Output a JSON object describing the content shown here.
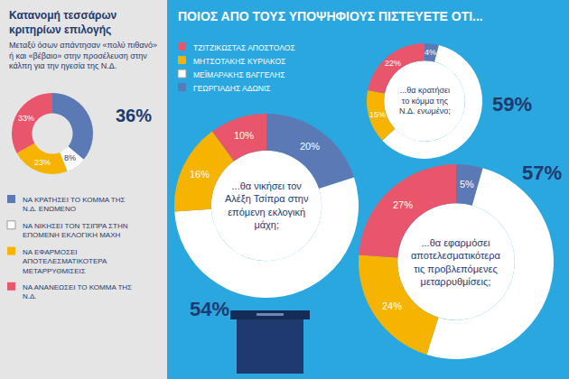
{
  "chart_data": [
    {
      "type": "pie",
      "title": "Κατανομή τεσσάρων κριτηρίων επιλογής",
      "subtitle": "Μεταξύ όσων απάντησαν «πολύ πιθανό» ή και «βέβαιο» στην προσέλευση στην κάλπη για την ηγεσία της Ν.Δ.",
      "categories": [
        "ΝΑ ΚΡΑΤΗΣΕΙ ΤΟ ΚΟΜΜΑ ΤΗΣ Ν.Δ. ΕΝΩΜΕΝΟ",
        "ΝΑ ΝΙΚΗΣΕΙ ΤΟΝ ΤΣΙΠΡΑ ΣΤΗΝ ΕΠΟΜΕΝΗ ΕΚΛΟΓΙΚΗ ΜΑΧΗ",
        "ΝΑ ΕΦΑΡΜΟΣΕΙ ΑΠΟΤΕΛΕΣΜΑΤΙΚΟΤΕΡΑ ΜΕΤΑΡΡΥΘΜΙΣΕΙΣ",
        "ΝΑ ΑΝΑΝΕΩΣΕΙ ΤΟ ΚΟΜΜΑ ΤΗΣ Ν.Δ."
      ],
      "values": [
        36,
        8,
        23,
        33
      ],
      "value_labels": [
        "36%",
        "8%",
        "23%",
        "33%"
      ],
      "colors": [
        "#5a79b5",
        "#ffffff",
        "#f6b400",
        "#e9556b"
      ],
      "data_labels": true,
      "legend": "bottom"
    },
    {
      "type": "pie",
      "title": "ΠΟΙΟΣ ΑΠΟ ΤΟΥΣ ΥΠΟΨΗΦΙΟΥΣ ΠΙΣΤΕΥΕΤΕ ΟΤΙ...",
      "categories": [
        "ΓΕΩΡΓΙΑΔΗΣ ΑΔΩΝΙΣ",
        "ΜΕΪΜΑΡΑΚΗΣ ΒΑΓΓΕΛΗΣ",
        "ΜΗΤΣΟΤΑΚΗΣ ΚΥΡΙΑΚΟΣ",
        "ΤΖΙΤΖΙΚΩΣΤΑΣ ΑΠΟΣΤΟΛΟΣ"
      ],
      "colors": [
        "#5a79b5",
        "#ffffff",
        "#f6b400",
        "#e9556b"
      ],
      "series": [
        {
          "name": "...θα κρατήσει το κόμμα της Ν.Δ. ενωμένο;",
          "values": [
            4,
            59,
            15,
            22
          ],
          "value_labels": [
            "4%",
            "59%",
            "15%",
            "22%"
          ]
        },
        {
          "name": "...θα νικήσει τον Αλέξη Τσίπρα στην επόμενη εκλογική μάχη;",
          "values": [
            20,
            54,
            16,
            10
          ],
          "value_labels": [
            "20%",
            "54%",
            "16%",
            "10%"
          ]
        },
        {
          "name": "...θα εφαρμόσει αποτελεσματικότερα τις προβλεπόμενες μεταρρυθμίσεις;",
          "values": [
            5,
            57,
            24,
            27
          ],
          "value_labels": [
            "5%",
            "57%",
            "24%",
            "27%"
          ]
        }
      ],
      "data_labels": true,
      "legend": "top-left"
    }
  ]
}
